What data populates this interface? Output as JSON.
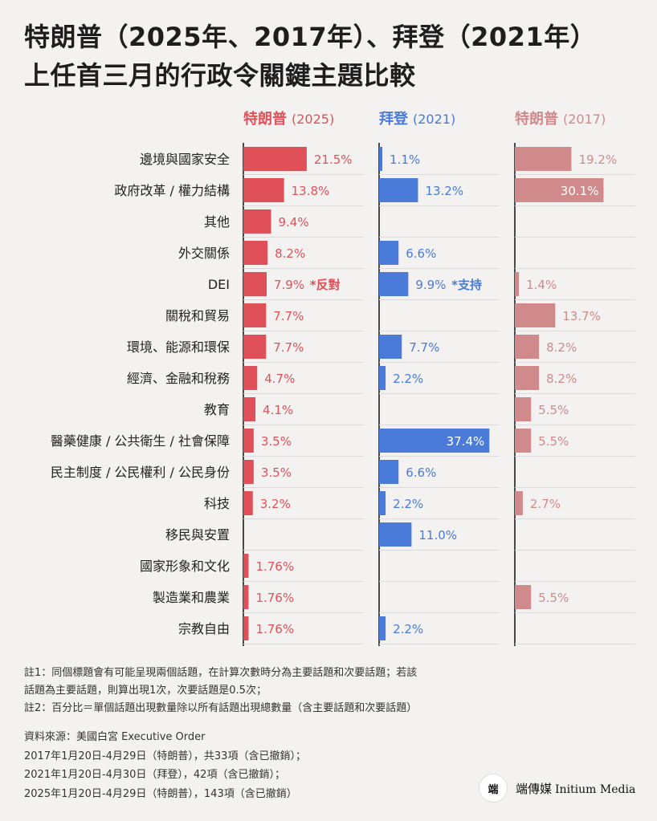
{
  "title_line1": "特朗普（2025年、2017年）、拜登（2021年）",
  "title_line2": "上任首三月的行政令關鍵主題比較",
  "columns": [
    {
      "name": "特朗普",
      "year": "(2025)",
      "color": "#e05058"
    },
    {
      "name": "拜登",
      "year": "(2021)",
      "color": "#4a7bd8"
    },
    {
      "name": "特朗普",
      "year": "(2017)",
      "color": "#d08a8c"
    }
  ],
  "chart_data": {
    "type": "bar",
    "orientation": "horizontal",
    "categories": [
      "邊境與國家安全",
      "政府改革 / 權力結構",
      "其他",
      "外交關係",
      "DEI",
      "關稅和貿易",
      "環境、能源和環保",
      "經濟、金融和稅務",
      "教育",
      "醫藥健康 / 公共衛生 / 社會保障",
      "民主制度 / 公民權利 / 公民身份",
      "科技",
      "移民與安置",
      "國家形象和文化",
      "製造業和農業",
      "宗教自由"
    ],
    "series": [
      {
        "name": "特朗普 (2025)",
        "values": [
          21.5,
          13.8,
          9.4,
          8.2,
          7.9,
          7.7,
          7.7,
          4.7,
          4.1,
          3.5,
          3.5,
          3.2,
          null,
          1.76,
          1.76,
          1.76
        ],
        "labels": [
          "21.5%",
          "13.8%",
          "9.4%",
          "8.2%",
          "7.9%",
          "7.7%",
          "7.7%",
          "4.7%",
          "4.1%",
          "3.5%",
          "3.5%",
          "3.2%",
          "",
          "1.76%",
          "1.76%",
          "1.76%"
        ],
        "annotations": {
          "4": "*反對"
        }
      },
      {
        "name": "拜登 (2021)",
        "values": [
          1.1,
          13.2,
          null,
          6.6,
          9.9,
          null,
          7.7,
          2.2,
          null,
          37.4,
          6.6,
          2.2,
          11.0,
          null,
          null,
          2.2
        ],
        "labels": [
          "1.1%",
          "13.2%",
          "",
          "6.6%",
          "9.9%",
          "",
          "7.7%",
          "2.2%",
          "",
          "37.4%",
          "6.6%",
          "2.2%",
          "11.0%",
          "",
          "",
          "2.2%"
        ],
        "annotations": {
          "4": "*支持"
        }
      },
      {
        "name": "特朗普 (2017)",
        "values": [
          19.2,
          30.1,
          null,
          null,
          1.4,
          13.7,
          8.2,
          8.2,
          5.5,
          5.5,
          null,
          2.7,
          null,
          null,
          5.5,
          null
        ],
        "labels": [
          "19.2%",
          "30.1%",
          "",
          "",
          "1.4%",
          "13.7%",
          "8.2%",
          "8.2%",
          "5.5%",
          "5.5%",
          "",
          "2.7%",
          "",
          "",
          "5.5%",
          ""
        ],
        "annotations": {}
      }
    ],
    "grid": false,
    "legend": "column headers"
  },
  "notes": [
    "註1：同個標題會有可能呈現兩個話題，在計算次數時分為主要話題和次要話題；若該",
    "話題為主要話題，則算出現1次，次要話題是0.5次；",
    "註2：百分比＝單個話題出現數量除以所有話題出現總數量（含主要話題和次要話題）"
  ],
  "sources": [
    "資料來源：美國白宮 Executive Order",
    "2017年1月20日-4月29日（特朗普），共33項（含已撤銷）；",
    "2021年1月20日-4月30日（拜登），42項（含已撤銷）；",
    "2025年1月20日-4月29日（特朗普），143項（含已撤銷）"
  ],
  "logo": {
    "mark": "端",
    "zh": "端傳媒",
    "en": "Initium Media"
  }
}
